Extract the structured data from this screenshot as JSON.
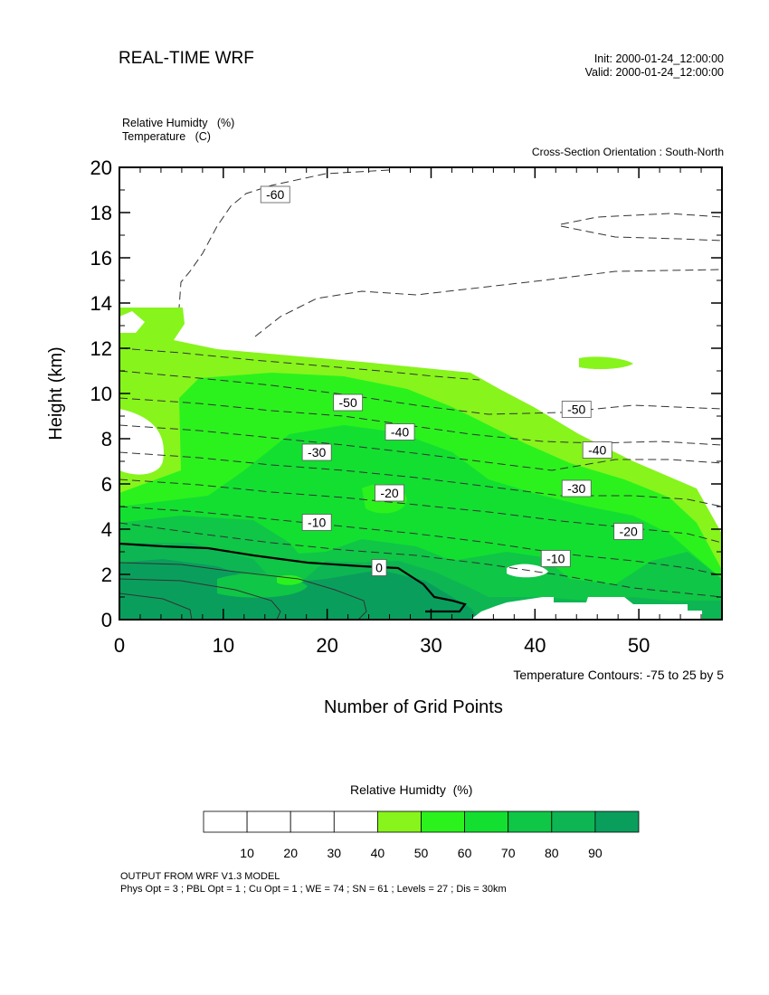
{
  "header": {
    "title": "REAL-TIME WRF",
    "init": "Init: 2000-01-24_12:00:00",
    "valid": "Valid: 2000-01-24_12:00:00",
    "var_line1": "Relative Humidty   (%)",
    "var_line2": "Temperature   (C)",
    "orientation": "Cross-Section Orientation : South-North"
  },
  "chart_data": {
    "type": "contour",
    "xlabel": "Number of Grid Points",
    "ylabel": "Height (km)",
    "xlim": [
      0,
      58
    ],
    "ylim": [
      0,
      20
    ],
    "xticks": [
      "0",
      "10",
      "20",
      "30",
      "40",
      "50"
    ],
    "yticks": [
      "0",
      "2",
      "4",
      "6",
      "8",
      "10",
      "12",
      "14",
      "16",
      "18",
      "20"
    ],
    "temperature_contour_note": "Temperature Contours: -75 to 25 by 5",
    "temperature_labels": [
      {
        "text": "-60",
        "x": 15,
        "y": 18.8
      },
      {
        "text": "-50",
        "x": 22,
        "y": 9.6
      },
      {
        "text": "-50",
        "x": 44,
        "y": 9.3
      },
      {
        "text": "-40",
        "x": 27,
        "y": 8.3
      },
      {
        "text": "-40",
        "x": 46,
        "y": 7.5
      },
      {
        "text": "-30",
        "x": 19,
        "y": 7.4
      },
      {
        "text": "-30",
        "x": 44,
        "y": 5.8
      },
      {
        "text": "-20",
        "x": 26,
        "y": 5.6
      },
      {
        "text": "-20",
        "x": 49,
        "y": 3.9
      },
      {
        "text": "-10",
        "x": 19,
        "y": 4.3
      },
      {
        "text": "-10",
        "x": 42,
        "y": 2.7
      },
      {
        "text": "0",
        "x": 25,
        "y": 2.3
      }
    ],
    "colorbar": {
      "title": "Relative Humidty  (%)",
      "levels": [
        "10",
        "20",
        "30",
        "40",
        "50",
        "60",
        "70",
        "80",
        "90"
      ],
      "colors": [
        "#ffffff",
        "#ffffff",
        "#ffffff",
        "#ffffff",
        "#87f41c",
        "#2bf21d",
        "#13df31",
        "#0fc646",
        "#0db653",
        "#0a9e5d"
      ]
    }
  },
  "footer": {
    "line1": "OUTPUT FROM WRF V1.3 MODEL",
    "line2": "Phys Opt = 3 ; PBL Opt = 1 ; Cu Opt = 1 ; WE = 74 ; SN = 61 ; Levels = 27 ; Dis = 30km"
  }
}
